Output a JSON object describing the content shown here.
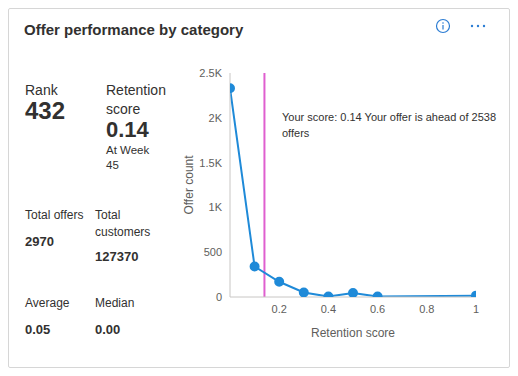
{
  "title": "Offer performance by category",
  "stats": [
    {
      "label": "Rank",
      "value": "432"
    },
    {
      "label": "Retention score",
      "value": "0.14",
      "note": "At Week 45"
    },
    {
      "label": "Total offers",
      "value": "2970"
    },
    {
      "label": "Total customers",
      "value": "127370"
    },
    {
      "label": "Average",
      "value": "0.05"
    },
    {
      "label": "Median",
      "value": "0.00"
    }
  ],
  "chart_data": {
    "type": "line",
    "x": [
      0,
      0.1,
      0.2,
      0.3,
      0.4,
      0.5,
      0.6,
      1
    ],
    "values": [
      2330,
      340,
      170,
      50,
      5,
      45,
      5,
      15
    ],
    "color": "#1f8ad8",
    "marker": "circle",
    "grid": false,
    "x_label": "Retention score",
    "y_label": "Offer count",
    "xlim": [
      0,
      1
    ],
    "xticks": [
      0.2,
      0.4,
      0.6,
      0.8,
      1
    ],
    "ylim": [
      0,
      2500
    ],
    "yticks": [
      0,
      500,
      {
        "value": 1000,
        "label": "1K"
      },
      {
        "value": 1500,
        "label": "1.5K"
      },
      {
        "value": 2000,
        "label": "2K"
      },
      {
        "value": 2500,
        "label": "2.5K"
      }
    ],
    "annotation": {
      "x": 0.14,
      "text": "Your score: 0.14 Your offer is ahead of 2538 offers",
      "color": "#df5fcf"
    }
  }
}
